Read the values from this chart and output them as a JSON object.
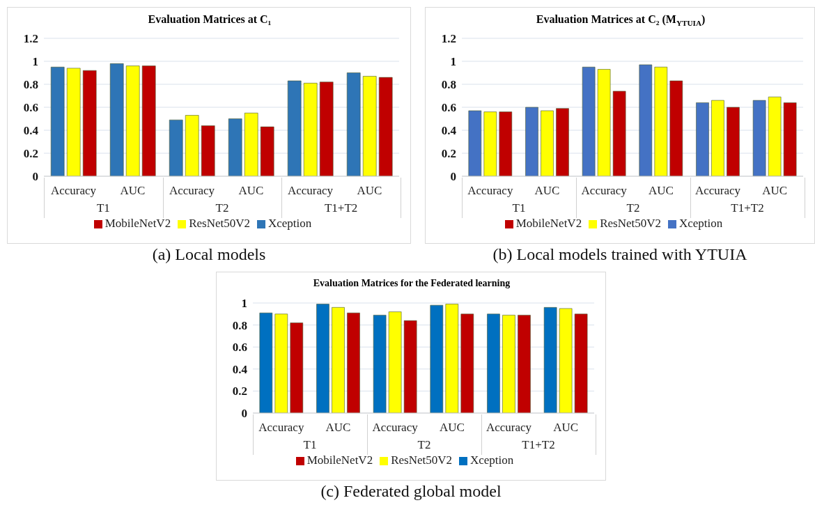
{
  "chart_data": [
    {
      "type": "bar",
      "title": "Evaluation Matrices at C₁",
      "categories": [
        "Accuracy",
        "AUC",
        "Accuracy",
        "AUC",
        "Accuracy",
        "AUC"
      ],
      "series": [
        {
          "name": "Xception",
          "color": "#2e75b6",
          "values": [
            0.95,
            0.98,
            0.49,
            0.5,
            0.83,
            0.9
          ]
        },
        {
          "name": "ResNet50V2",
          "color": "#ffff00",
          "values": [
            0.94,
            0.96,
            0.53,
            0.55,
            0.81,
            0.87
          ]
        },
        {
          "name": "MobileNetV2",
          "color": "#c00000",
          "values": [
            0.92,
            0.96,
            0.44,
            0.43,
            0.82,
            0.86
          ]
        }
      ],
      "ylim": [
        0,
        1.2
      ],
      "yticks": [
        0,
        0.2,
        0.4,
        0.6,
        0.8,
        1,
        1.2
      ],
      "grid": "y",
      "legend": "bottom",
      "annotations": [
        "T1",
        "T2",
        "T1+T2",
        "(a) Local models"
      ]
    },
    {
      "type": "bar",
      "title": "Evaluation Matrices at C₂ (M$_{YTUIA}$)",
      "categories": [
        "Accuracy",
        "AUC",
        "Accuracy",
        "AUC",
        "Accuracy",
        "AUC"
      ],
      "series": [
        {
          "name": "Xception",
          "color": "#4472c4",
          "values": [
            0.57,
            0.6,
            0.95,
            0.97,
            0.64,
            0.66
          ]
        },
        {
          "name": "ResNet50V2",
          "color": "#ffff00",
          "values": [
            0.56,
            0.57,
            0.93,
            0.95,
            0.66,
            0.69
          ]
        },
        {
          "name": "MobileNetV2",
          "color": "#c00000",
          "values": [
            0.56,
            0.59,
            0.74,
            0.83,
            0.6,
            0.64
          ]
        }
      ],
      "ylim": [
        0,
        1.2
      ],
      "yticks": [
        0,
        0.2,
        0.4,
        0.6,
        0.8,
        1,
        1.2
      ],
      "grid": "y",
      "legend": "bottom",
      "annotations": [
        "T1",
        "T2",
        "T1+T2",
        "(b) Local models trained with YTUIA"
      ]
    },
    {
      "type": "bar",
      "title": "Evaluation Matrices for the Federated learning",
      "categories": [
        "Accuracy",
        "AUC",
        "Accuracy",
        "AUC",
        "Accuracy",
        "AUC"
      ],
      "series": [
        {
          "name": "Xception",
          "color": "#0070c0",
          "values": [
            0.91,
            0.99,
            0.89,
            0.98,
            0.9,
            0.96
          ]
        },
        {
          "name": "ResNet50V2",
          "color": "#ffff00",
          "values": [
            0.9,
            0.96,
            0.92,
            0.99,
            0.89,
            0.95
          ]
        },
        {
          "name": "MobileNetV2",
          "color": "#c00000",
          "values": [
            0.82,
            0.91,
            0.84,
            0.9,
            0.89,
            0.9
          ]
        }
      ],
      "ylim": [
        0,
        1
      ],
      "yticks": [
        0,
        0.2,
        0.4,
        0.6,
        0.8,
        1
      ],
      "grid": "y",
      "legend": "bottom",
      "annotations": [
        "T1",
        "T2",
        "T1+T2",
        "(c) Federated global model"
      ]
    }
  ]
}
